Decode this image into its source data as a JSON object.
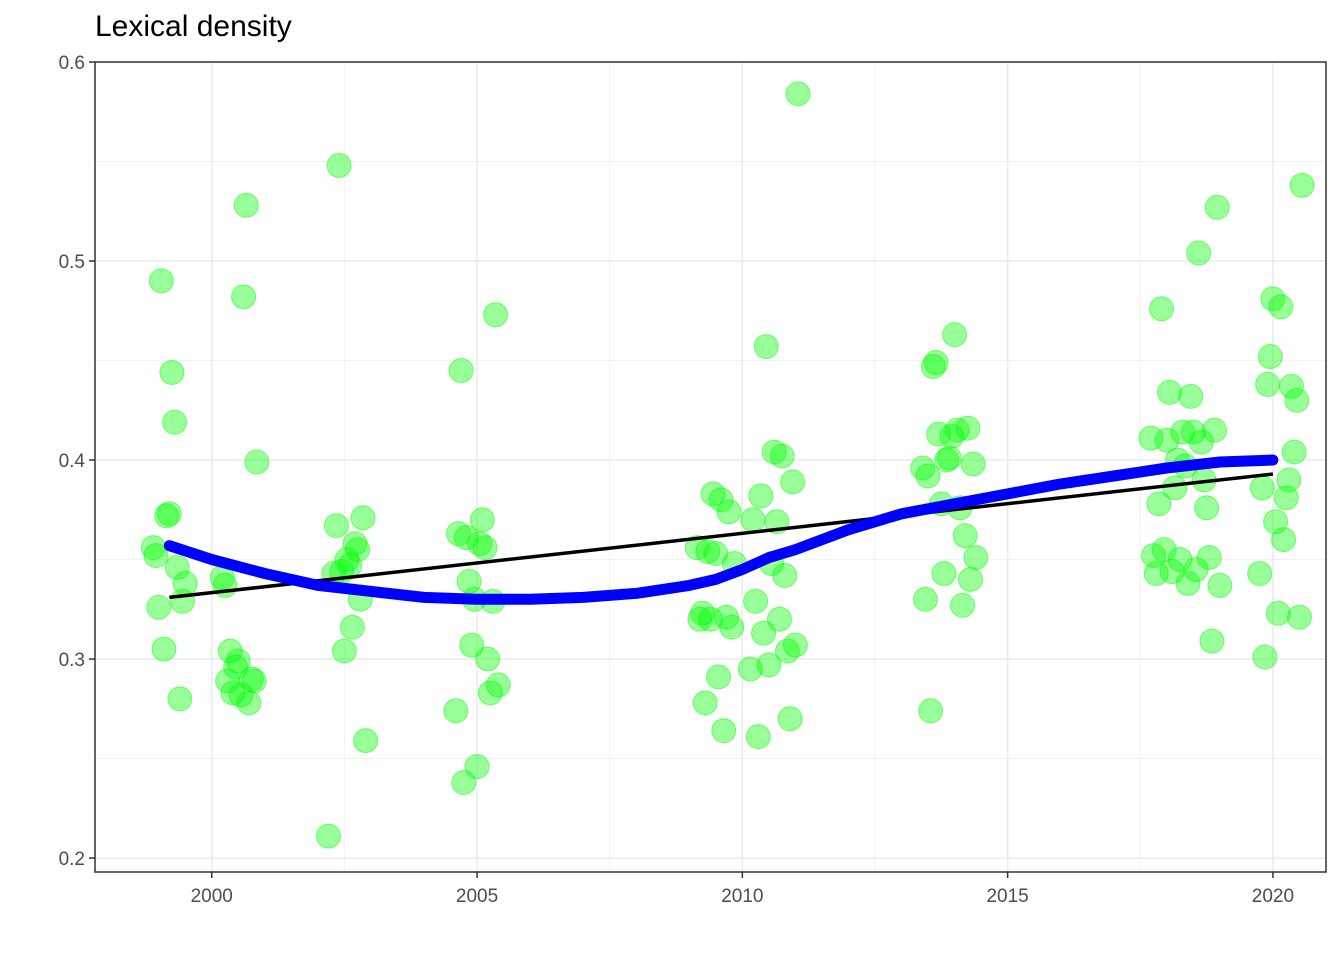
{
  "chart_data": {
    "type": "scatter",
    "title": "Lexical density",
    "xlabel": "",
    "ylabel": "",
    "xlim": [
      1997.8,
      2021.0
    ],
    "ylim": [
      0.193,
      0.6
    ],
    "x_ticks": [
      2000,
      2005,
      2010,
      2015,
      2020
    ],
    "x_tick_labels": [
      "2000",
      "2005",
      "2010",
      "2015",
      "2020"
    ],
    "y_ticks": [
      0.2,
      0.3,
      0.4,
      0.5,
      0.6
    ],
    "y_tick_labels": [
      "0.2",
      "0.3",
      "0.4",
      "0.5",
      "0.6"
    ],
    "grid": true,
    "legend": "none",
    "colors": {
      "points": "#00ff00",
      "linear_fit": "#000000",
      "smooth_fit": "#0000ff"
    },
    "points": [
      [
        1998.9,
        0.356
      ],
      [
        1998.95,
        0.352
      ],
      [
        1999.0,
        0.326
      ],
      [
        1999.05,
        0.49
      ],
      [
        1999.1,
        0.305
      ],
      [
        1999.15,
        0.372
      ],
      [
        1999.2,
        0.373
      ],
      [
        1999.25,
        0.444
      ],
      [
        1999.3,
        0.419
      ],
      [
        1999.35,
        0.346
      ],
      [
        1999.4,
        0.28
      ],
      [
        1999.45,
        0.329
      ],
      [
        1999.5,
        0.338
      ],
      [
        2000.2,
        0.341
      ],
      [
        2000.25,
        0.337
      ],
      [
        2000.3,
        0.289
      ],
      [
        2000.35,
        0.304
      ],
      [
        2000.4,
        0.283
      ],
      [
        2000.45,
        0.296
      ],
      [
        2000.5,
        0.299
      ],
      [
        2000.55,
        0.282
      ],
      [
        2000.6,
        0.482
      ],
      [
        2000.65,
        0.528
      ],
      [
        2000.7,
        0.278
      ],
      [
        2000.75,
        0.29
      ],
      [
        2000.8,
        0.289
      ],
      [
        2000.85,
        0.399
      ],
      [
        2002.2,
        0.211
      ],
      [
        2002.3,
        0.343
      ],
      [
        2002.35,
        0.367
      ],
      [
        2002.4,
        0.548
      ],
      [
        2002.45,
        0.344
      ],
      [
        2002.5,
        0.304
      ],
      [
        2002.55,
        0.35
      ],
      [
        2002.6,
        0.347
      ],
      [
        2002.65,
        0.316
      ],
      [
        2002.7,
        0.358
      ],
      [
        2002.75,
        0.355
      ],
      [
        2002.8,
        0.33
      ],
      [
        2002.85,
        0.371
      ],
      [
        2002.9,
        0.259
      ],
      [
        2004.6,
        0.274
      ],
      [
        2004.65,
        0.363
      ],
      [
        2004.7,
        0.445
      ],
      [
        2004.75,
        0.238
      ],
      [
        2004.8,
        0.361
      ],
      [
        2004.85,
        0.339
      ],
      [
        2004.9,
        0.307
      ],
      [
        2004.95,
        0.33
      ],
      [
        2005.0,
        0.246
      ],
      [
        2005.05,
        0.358
      ],
      [
        2005.1,
        0.37
      ],
      [
        2005.15,
        0.356
      ],
      [
        2005.2,
        0.3
      ],
      [
        2005.25,
        0.283
      ],
      [
        2005.3,
        0.329
      ],
      [
        2005.35,
        0.473
      ],
      [
        2005.4,
        0.287
      ],
      [
        2009.15,
        0.356
      ],
      [
        2009.2,
        0.32
      ],
      [
        2009.25,
        0.323
      ],
      [
        2009.3,
        0.278
      ],
      [
        2009.35,
        0.354
      ],
      [
        2009.4,
        0.32
      ],
      [
        2009.45,
        0.383
      ],
      [
        2009.5,
        0.353
      ],
      [
        2009.55,
        0.291
      ],
      [
        2009.6,
        0.38
      ],
      [
        2009.65,
        0.264
      ],
      [
        2009.7,
        0.321
      ],
      [
        2009.75,
        0.374
      ],
      [
        2009.8,
        0.316
      ],
      [
        2009.85,
        0.348
      ],
      [
        2010.15,
        0.295
      ],
      [
        2010.2,
        0.37
      ],
      [
        2010.25,
        0.329
      ],
      [
        2010.3,
        0.261
      ],
      [
        2010.35,
        0.382
      ],
      [
        2010.4,
        0.313
      ],
      [
        2010.45,
        0.457
      ],
      [
        2010.5,
        0.297
      ],
      [
        2010.55,
        0.348
      ],
      [
        2010.6,
        0.404
      ],
      [
        2010.65,
        0.369
      ],
      [
        2010.7,
        0.32
      ],
      [
        2010.75,
        0.402
      ],
      [
        2010.8,
        0.342
      ],
      [
        2010.85,
        0.304
      ],
      [
        2010.9,
        0.27
      ],
      [
        2010.95,
        0.389
      ],
      [
        2011.0,
        0.307
      ],
      [
        2011.05,
        0.584
      ],
      [
        2013.4,
        0.396
      ],
      [
        2013.45,
        0.33
      ],
      [
        2013.5,
        0.392
      ],
      [
        2013.55,
        0.274
      ],
      [
        2013.6,
        0.447
      ],
      [
        2013.65,
        0.449
      ],
      [
        2013.7,
        0.413
      ],
      [
        2013.75,
        0.378
      ],
      [
        2013.8,
        0.343
      ],
      [
        2013.85,
        0.4
      ],
      [
        2013.9,
        0.401
      ],
      [
        2013.95,
        0.412
      ],
      [
        2014.0,
        0.463
      ],
      [
        2014.05,
        0.415
      ],
      [
        2014.1,
        0.376
      ],
      [
        2014.15,
        0.327
      ],
      [
        2014.2,
        0.362
      ],
      [
        2014.25,
        0.416
      ],
      [
        2014.3,
        0.34
      ],
      [
        2014.35,
        0.398
      ],
      [
        2014.4,
        0.351
      ],
      [
        2017.7,
        0.411
      ],
      [
        2017.75,
        0.352
      ],
      [
        2017.8,
        0.343
      ],
      [
        2017.85,
        0.378
      ],
      [
        2017.9,
        0.476
      ],
      [
        2017.95,
        0.355
      ],
      [
        2018.0,
        0.41
      ],
      [
        2018.05,
        0.434
      ],
      [
        2018.1,
        0.344
      ],
      [
        2018.15,
        0.386
      ],
      [
        2018.2,
        0.4
      ],
      [
        2018.25,
        0.35
      ],
      [
        2018.3,
        0.414
      ],
      [
        2018.35,
        0.397
      ],
      [
        2018.4,
        0.338
      ],
      [
        2018.45,
        0.432
      ],
      [
        2018.5,
        0.414
      ],
      [
        2018.55,
        0.345
      ],
      [
        2018.6,
        0.504
      ],
      [
        2018.65,
        0.409
      ],
      [
        2018.7,
        0.39
      ],
      [
        2018.75,
        0.376
      ],
      [
        2018.8,
        0.351
      ],
      [
        2018.85,
        0.309
      ],
      [
        2018.9,
        0.415
      ],
      [
        2018.95,
        0.527
      ],
      [
        2019.0,
        0.337
      ],
      [
        2019.75,
        0.343
      ],
      [
        2019.8,
        0.386
      ],
      [
        2019.85,
        0.301
      ],
      [
        2019.9,
        0.438
      ],
      [
        2019.95,
        0.452
      ],
      [
        2020.0,
        0.481
      ],
      [
        2020.05,
        0.369
      ],
      [
        2020.1,
        0.323
      ],
      [
        2020.15,
        0.477
      ],
      [
        2020.2,
        0.36
      ],
      [
        2020.25,
        0.381
      ],
      [
        2020.3,
        0.39
      ],
      [
        2020.35,
        0.437
      ],
      [
        2020.4,
        0.404
      ],
      [
        2020.45,
        0.43
      ],
      [
        2020.5,
        0.321
      ],
      [
        2020.55,
        0.538
      ]
    ],
    "linear_fit": [
      [
        1999.2,
        0.331
      ],
      [
        2020.0,
        0.393
      ]
    ],
    "smooth_fit": [
      [
        1999.2,
        0.357
      ],
      [
        2000.0,
        0.35
      ],
      [
        2001.0,
        0.343
      ],
      [
        2002.0,
        0.337
      ],
      [
        2003.0,
        0.334
      ],
      [
        2004.0,
        0.331
      ],
      [
        2005.0,
        0.33
      ],
      [
        2006.0,
        0.33
      ],
      [
        2007.0,
        0.331
      ],
      [
        2008.0,
        0.333
      ],
      [
        2009.0,
        0.337
      ],
      [
        2009.5,
        0.34
      ],
      [
        2010.0,
        0.345
      ],
      [
        2010.5,
        0.351
      ],
      [
        2011.0,
        0.355
      ],
      [
        2012.0,
        0.365
      ],
      [
        2013.0,
        0.373
      ],
      [
        2014.0,
        0.378
      ],
      [
        2015.0,
        0.383
      ],
      [
        2016.0,
        0.388
      ],
      [
        2017.0,
        0.392
      ],
      [
        2018.0,
        0.396
      ],
      [
        2019.0,
        0.399
      ],
      [
        2020.0,
        0.4
      ]
    ]
  }
}
